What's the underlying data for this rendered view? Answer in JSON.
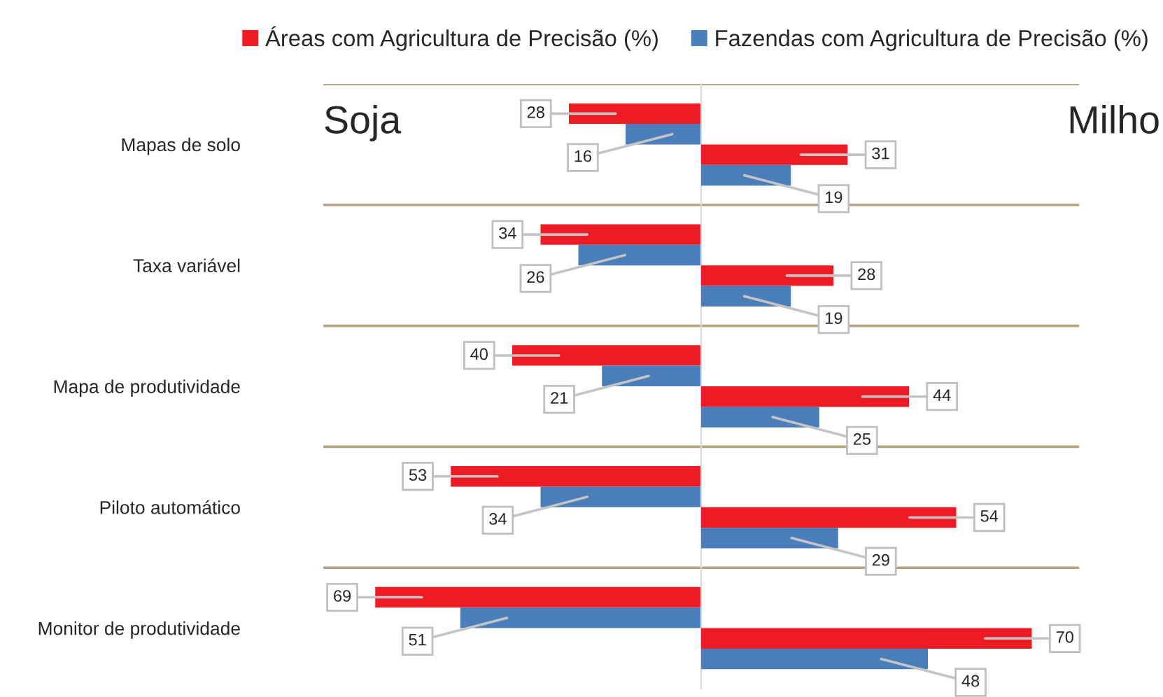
{
  "chart_data": [
    {
      "type": "bar",
      "orientation": "horizontal",
      "title": "Soja",
      "categories": [
        "Mapas de solo",
        "Taxa variável",
        "Mapa de produtividade",
        "Piloto automático",
        "Monitor de produtividade"
      ],
      "series": [
        {
          "name": "Áreas com Agricultura de Precisão (%)",
          "color": "#ed1c24",
          "values": [
            28,
            34,
            40,
            53,
            69
          ]
        },
        {
          "name": "Fazendas com Agricultura de Precisão (%)",
          "color": "#4a7ebb",
          "values": [
            16,
            26,
            21,
            34,
            51
          ]
        }
      ],
      "xlim": [
        80,
        0
      ],
      "data_labels": true,
      "grid": "y",
      "legend": "top",
      "tick_labels": "y"
    },
    {
      "type": "bar",
      "orientation": "horizontal",
      "title": "Milho",
      "categories": [
        null,
        null,
        null,
        null,
        null
      ],
      "series": [
        {
          "color": "#ed1c24",
          "values": [
            31,
            28,
            44,
            54,
            70
          ]
        },
        {
          "color": "#4a7ebb",
          "values": [
            19,
            19,
            25,
            29,
            48
          ]
        }
      ],
      "xlim": [
        0,
        80
      ],
      "data_labels": true,
      "grid": "y",
      "tick_labels": false
    }
  ]
}
